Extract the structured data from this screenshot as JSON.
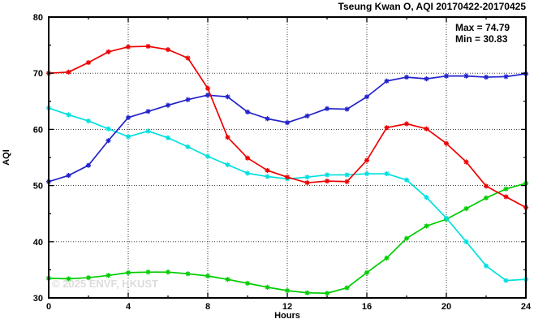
{
  "header": {
    "title": "Tseung Kwan O, AQI 20170422-20170425"
  },
  "annotation": {
    "max_label": "Max = 74.79",
    "min_label": "Min = 30.83"
  },
  "watermark": {
    "text": "© 2025 ENVF, HKUST"
  },
  "chart_data": {
    "type": "line",
    "title": "Tseung Kwan O, AQI 20170422-20170425",
    "xlabel": "Hours",
    "ylabel": "AQI",
    "xlim": [
      0,
      24
    ],
    "ylim": [
      30,
      80
    ],
    "xticks": [
      0,
      4,
      8,
      12,
      16,
      20,
      24
    ],
    "yticks": [
      30,
      40,
      50,
      60,
      70,
      80
    ],
    "x_minor_step": 2,
    "y_minor_step": 5,
    "grid": true,
    "legend": "none",
    "annotations": [
      "Max = 74.79",
      "Min = 30.83"
    ],
    "x": [
      0,
      1,
      2,
      3,
      4,
      5,
      6,
      7,
      8,
      9,
      10,
      11,
      12,
      13,
      14,
      15,
      16,
      17,
      18,
      19,
      20,
      21,
      22,
      23,
      24
    ],
    "series": [
      {
        "name": "green-series",
        "color": "#00cc00",
        "values": [
          33.5,
          33.4,
          33.6,
          34.0,
          34.5,
          34.6,
          34.6,
          34.3,
          33.9,
          33.3,
          32.6,
          31.9,
          31.3,
          30.9,
          30.83,
          31.8,
          34.5,
          37.1,
          40.6,
          42.8,
          44.0,
          45.9,
          47.8,
          49.4,
          50.4
        ]
      },
      {
        "name": "cyan-series",
        "color": "#00e0e0",
        "values": [
          63.8,
          62.6,
          61.5,
          60.1,
          58.7,
          59.7,
          58.5,
          56.9,
          55.2,
          53.7,
          52.2,
          51.6,
          51.2,
          51.5,
          51.9,
          51.9,
          52.1,
          52.1,
          51.0,
          47.9,
          44.2,
          40.0,
          35.7,
          33.1,
          33.3
        ]
      },
      {
        "name": "blue-series",
        "color": "#2222cc",
        "values": [
          50.7,
          51.8,
          53.6,
          58.0,
          62.1,
          63.2,
          64.3,
          65.3,
          66.1,
          65.8,
          63.1,
          61.9,
          61.2,
          62.4,
          63.7,
          63.6,
          65.8,
          68.6,
          69.3,
          69.0,
          69.5,
          69.5,
          69.3,
          69.4,
          69.9
        ]
      },
      {
        "name": "red-series",
        "color": "#ee0000",
        "values": [
          70.0,
          70.2,
          71.9,
          73.8,
          74.7,
          74.79,
          74.2,
          72.7,
          67.3,
          58.6,
          54.9,
          52.7,
          51.5,
          50.5,
          50.8,
          50.7,
          54.5,
          60.3,
          61.0,
          60.1,
          57.5,
          54.2,
          49.9,
          48.0,
          46.1
        ]
      }
    ]
  }
}
